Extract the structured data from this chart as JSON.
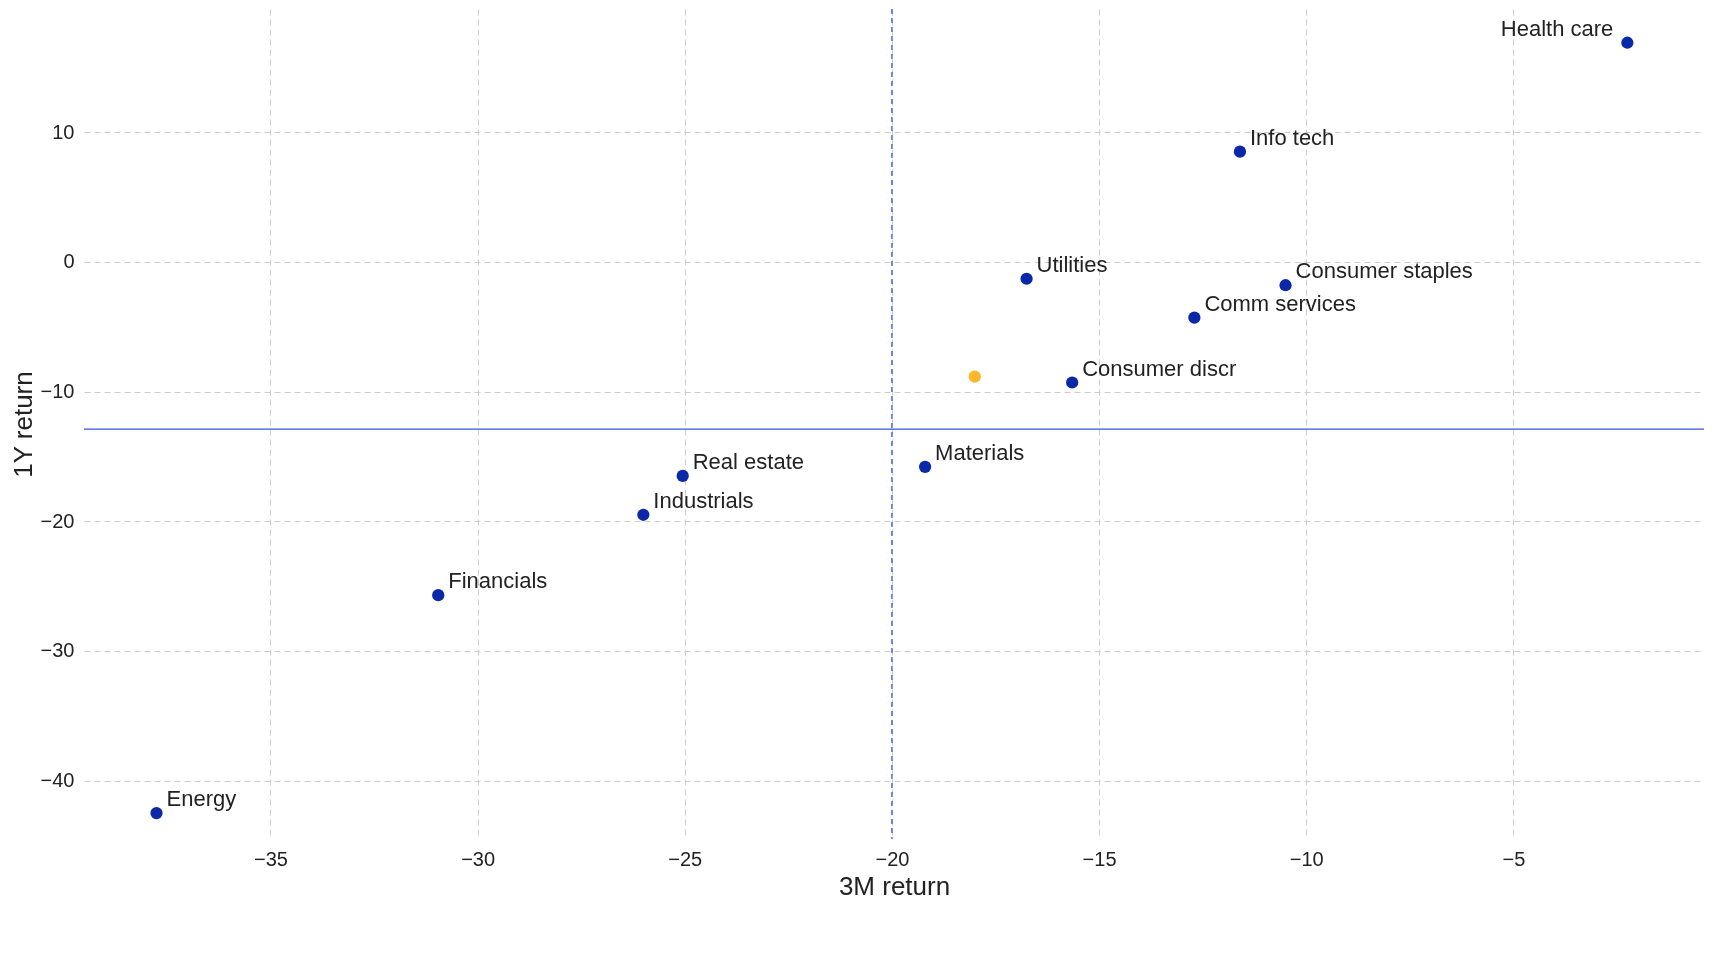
{
  "chart_data": {
    "type": "scatter",
    "xlabel": "3M return",
    "ylabel": "1Y return",
    "xlim": [
      -39.5,
      -0.4
    ],
    "ylim": [
      -44.5,
      19.5
    ],
    "xticks": [
      -35,
      -30,
      -25,
      -20,
      -15,
      -10,
      -5
    ],
    "yticks": [
      -40,
      -30,
      -20,
      -10,
      0,
      10
    ],
    "grid": true,
    "legend": false,
    "marker": "circle",
    "series": [
      {
        "color": "#0a28a8",
        "x": [
          -2.25,
          -11.6,
          -16.75,
          -10.5,
          -12.7,
          -15.65,
          -19.2,
          -25.05,
          -26.0,
          -30.95,
          -37.75
        ],
        "values": [
          16.9,
          8.5,
          -1.3,
          -1.8,
          -4.3,
          -9.3,
          -15.8,
          -16.5,
          -19.5,
          -25.7,
          -42.5
        ]
      },
      {
        "color": "#fbb829",
        "x": [
          -18.0
        ],
        "values": [
          -8.85
        ]
      }
    ],
    "ref_lines": [
      {
        "axis": "x",
        "value": -20,
        "color": "#3355dd",
        "line_style": "dashed"
      },
      {
        "axis": "y",
        "value": -12.9,
        "color": "#3355dd",
        "line_style": "solid"
      }
    ],
    "annotations": [
      {
        "text": "Health care",
        "x": -2.25,
        "y": 16.9
      },
      {
        "text": "Info tech",
        "x": -11.6,
        "y": 8.5
      },
      {
        "text": "Utilities",
        "x": -16.75,
        "y": -1.3
      },
      {
        "text": "Consumer staples",
        "x": -10.5,
        "y": -1.8
      },
      {
        "text": "Comm services",
        "x": -12.7,
        "y": -4.3
      },
      {
        "text": "Consumer discr",
        "x": -15.65,
        "y": -9.3
      },
      {
        "text": "Materials",
        "x": -19.2,
        "y": -15.8
      },
      {
        "text": "Real estate",
        "x": -25.05,
        "y": -16.5
      },
      {
        "text": "Industrials",
        "x": -26.0,
        "y": -19.5
      },
      {
        "text": "Financials",
        "x": -30.95,
        "y": -25.7
      },
      {
        "text": "Energy",
        "x": -37.75,
        "y": -42.5
      }
    ]
  }
}
